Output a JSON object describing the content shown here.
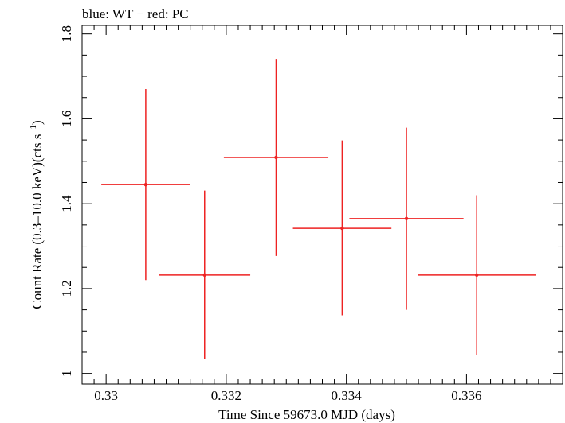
{
  "chart_data": {
    "type": "scatter",
    "title": "blue: WT − red: PC",
    "xlabel": "Time Since 59673.0 MJD (days)",
    "ylabel_main": "Count Rate (0.3–10.0 keV)(cts s",
    "ylabel_sup": "−1",
    "ylabel_close": ")",
    "xlim": [
      0.3296,
      0.3376
    ],
    "ylim": [
      0.975,
      1.82
    ],
    "xticks": [
      0.33,
      0.332,
      0.334,
      0.336
    ],
    "xtick_labels": [
      "0.33",
      "0.332",
      "0.334",
      "0.336"
    ],
    "yticks": [
      1.0,
      1.2,
      1.4,
      1.6,
      1.8
    ],
    "ytick_labels": [
      "1",
      "1.2",
      "1.4",
      "1.6",
      "1.8"
    ],
    "grid": false,
    "series": [
      {
        "color": "#ee2222",
        "points": [
          {
            "x": 0.33066,
            "xerr": 0.00074,
            "y": 1.445,
            "ylo": 1.22,
            "yhi": 1.67
          },
          {
            "x": 0.33164,
            "xerr": 0.00076,
            "y": 1.232,
            "ylo": 1.033,
            "yhi": 1.431
          },
          {
            "x": 0.33283,
            "xerr": 0.00087,
            "y": 1.509,
            "ylo": 1.277,
            "yhi": 1.741
          },
          {
            "x": 0.33393,
            "xerr": 0.00082,
            "y": 1.342,
            "ylo": 1.137,
            "yhi": 1.549
          },
          {
            "x": 0.335,
            "xerr": 0.00095,
            "y": 1.365,
            "ylo": 1.15,
            "yhi": 1.579
          },
          {
            "x": 0.33617,
            "xerr": 0.00098,
            "y": 1.232,
            "ylo": 1.044,
            "yhi": 1.42
          }
        ]
      }
    ]
  }
}
